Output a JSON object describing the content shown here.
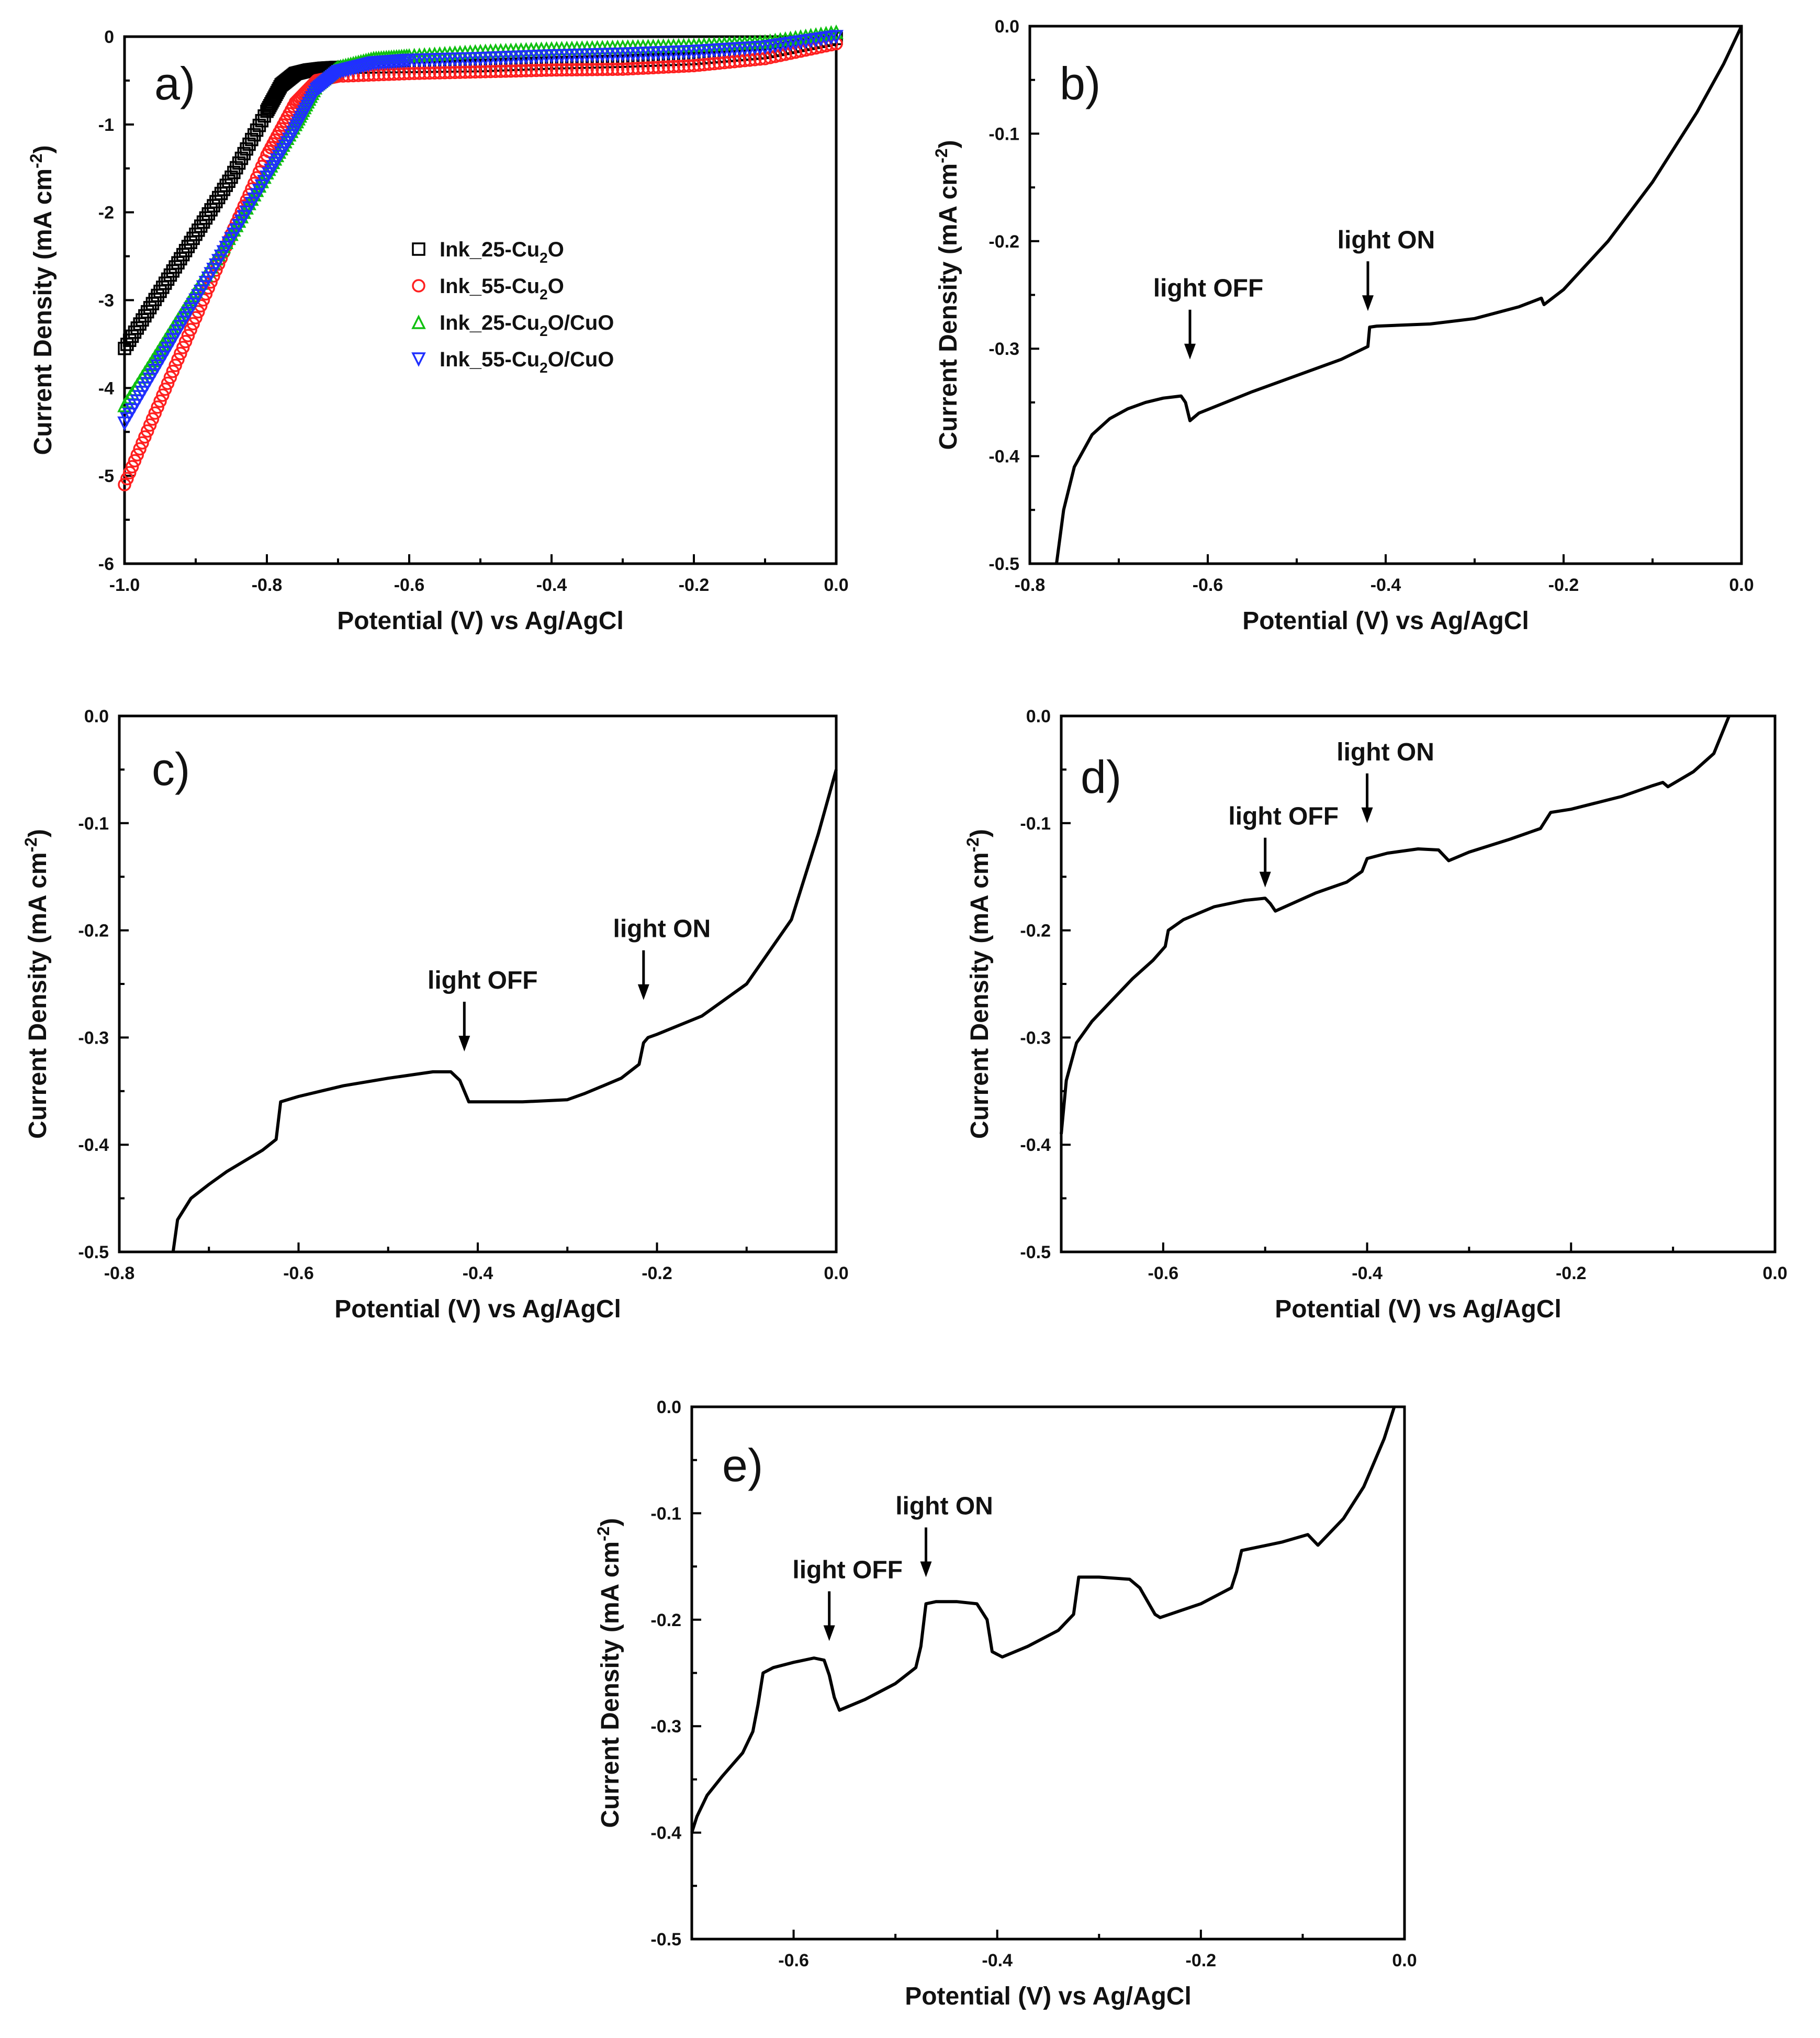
{
  "chart_data": [
    {
      "panel": "a)",
      "type": "scatter",
      "xlabel": "Potential (V) vs Ag/AgCl",
      "ylabel_main": "Current Density (mA cm",
      "ylabel_sup": "-2",
      "ylabel_tail": ")",
      "xlim": [
        -1.0,
        0.0
      ],
      "ylim": [
        -6,
        0
      ],
      "xticks": [
        -1.0,
        -0.8,
        -0.6,
        -0.4,
        -0.2,
        0.0
      ],
      "yticks": [
        0,
        -1,
        -2,
        -3,
        -4,
        -5,
        -6
      ],
      "xtick_labels": [
        "-1.0",
        "-0.8",
        "-0.6",
        "-0.4",
        "-0.2",
        "0.0"
      ],
      "ytick_labels": [
        "0",
        "-1",
        "-2",
        "-3",
        "-4",
        "-5",
        "-6"
      ],
      "series": [
        {
          "name_main": "Ink_25-Cu",
          "name_sub": "2",
          "name_tail": "O",
          "marker": "square",
          "color": "#000000",
          "x": [
            -1.0,
            -0.95,
            -0.9,
            -0.85,
            -0.8,
            -0.78,
            -0.76,
            -0.74,
            -0.72,
            -0.7,
            -0.6,
            -0.5,
            -0.4,
            -0.3,
            -0.2,
            -0.1,
            0.0
          ],
          "y": [
            -3.55,
            -2.9,
            -2.25,
            -1.6,
            -0.85,
            -0.55,
            -0.42,
            -0.38,
            -0.36,
            -0.35,
            -0.34,
            -0.33,
            -0.3,
            -0.28,
            -0.25,
            -0.18,
            -0.02
          ]
        },
        {
          "name_main": "Ink_55-Cu",
          "name_sub": "2",
          "name_tail": "O",
          "marker": "circle",
          "color": "#ff2020",
          "x": [
            -1.0,
            -0.95,
            -0.9,
            -0.85,
            -0.8,
            -0.76,
            -0.73,
            -0.7,
            -0.6,
            -0.5,
            -0.4,
            -0.3,
            -0.2,
            -0.1,
            0.0
          ],
          "y": [
            -5.1,
            -4.15,
            -3.2,
            -2.25,
            -1.35,
            -0.75,
            -0.5,
            -0.45,
            -0.42,
            -0.4,
            -0.38,
            -0.37,
            -0.33,
            -0.25,
            -0.08
          ]
        },
        {
          "name_main": "Ink_25-Cu",
          "name_sub": "2",
          "name_tail": "O/CuO",
          "marker": "triangle-up",
          "color": "#10c010",
          "x": [
            -1.0,
            -0.95,
            -0.9,
            -0.85,
            -0.8,
            -0.76,
            -0.73,
            -0.7,
            -0.65,
            -0.6,
            -0.5,
            -0.4,
            -0.3,
            -0.2,
            -0.1,
            0.0
          ],
          "y": [
            -4.2,
            -3.55,
            -2.9,
            -2.25,
            -1.55,
            -1.0,
            -0.55,
            -0.35,
            -0.25,
            -0.22,
            -0.17,
            -0.14,
            -0.12,
            -0.1,
            -0.06,
            0.05
          ]
        },
        {
          "name_main": "Ink_55-Cu",
          "name_sub": "2",
          "name_tail": "O/CuO",
          "marker": "triangle-down",
          "color": "#2030ff",
          "x": [
            -1.0,
            -0.95,
            -0.9,
            -0.85,
            -0.8,
            -0.76,
            -0.73,
            -0.7,
            -0.65,
            -0.6,
            -0.5,
            -0.4,
            -0.3,
            -0.2,
            -0.1,
            0.0
          ],
          "y": [
            -4.4,
            -3.7,
            -3.0,
            -2.3,
            -1.6,
            -1.05,
            -0.6,
            -0.4,
            -0.3,
            -0.27,
            -0.25,
            -0.22,
            -0.2,
            -0.17,
            -0.12,
            0.0
          ]
        }
      ]
    },
    {
      "panel": "b)",
      "type": "line",
      "xlabel": "Potential (V) vs Ag/AgCl",
      "ylabel_main": "Current Density (mA cm",
      "ylabel_sup": "-2",
      "ylabel_tail": ")",
      "xlim": [
        -0.8,
        0.0
      ],
      "ylim": [
        -0.5,
        0.0
      ],
      "xticks": [
        -0.8,
        -0.6,
        -0.4,
        -0.2,
        0.0
      ],
      "yticks": [
        0.0,
        -0.1,
        -0.2,
        -0.3,
        -0.4,
        -0.5
      ],
      "xtick_labels": [
        "-0.8",
        "-0.6",
        "-0.4",
        "-0.2",
        "0.0"
      ],
      "ytick_labels": [
        "0.0",
        "-0.1",
        "-0.2",
        "-0.3",
        "-0.4",
        "-0.5"
      ],
      "annotations": [
        {
          "text": "light OFF",
          "x": -0.62,
          "y": -0.31
        },
        {
          "text": "light ON",
          "x": -0.42,
          "y": -0.265
        }
      ],
      "x": [
        -0.77,
        -0.762,
        -0.75,
        -0.73,
        -0.71,
        -0.69,
        -0.67,
        -0.65,
        -0.63,
        -0.625,
        -0.62,
        -0.61,
        -0.55,
        -0.5,
        -0.45,
        -0.42,
        -0.418,
        -0.41,
        -0.35,
        -0.3,
        -0.25,
        -0.225,
        -0.222,
        -0.2,
        -0.15,
        -0.1,
        -0.05,
        -0.02,
        0.0
      ],
      "y": [
        -0.5,
        -0.45,
        -0.41,
        -0.38,
        -0.365,
        -0.356,
        -0.35,
        -0.346,
        -0.344,
        -0.35,
        -0.367,
        -0.36,
        -0.34,
        -0.325,
        -0.31,
        -0.298,
        -0.28,
        -0.279,
        -0.277,
        -0.272,
        -0.261,
        -0.253,
        -0.259,
        -0.245,
        -0.2,
        -0.145,
        -0.08,
        -0.035,
        0.0
      ]
    },
    {
      "panel": "c)",
      "type": "line",
      "xlabel": "Potential (V) vs Ag/AgCl",
      "ylabel_main": "Current Density (mA cm",
      "ylabel_sup": "-2",
      "ylabel_tail": ")",
      "xlim": [
        -0.8,
        0.0
      ],
      "ylim": [
        -0.5,
        0.0
      ],
      "xticks": [
        -0.8,
        -0.6,
        -0.4,
        -0.2,
        0.0
      ],
      "yticks": [
        0.0,
        -0.1,
        -0.2,
        -0.3,
        -0.4,
        -0.5
      ],
      "xtick_labels": [
        "-0.8",
        "-0.6",
        "-0.4",
        "-0.2",
        "0.0"
      ],
      "ytick_labels": [
        "0.0",
        "-0.1",
        "-0.2",
        "-0.3",
        "-0.4",
        "-0.5"
      ],
      "annotations": [
        {
          "text": "light OFF",
          "x": -0.415,
          "y": -0.313
        },
        {
          "text": "light ON",
          "x": -0.215,
          "y": -0.265
        }
      ],
      "x": [
        -0.74,
        -0.735,
        -0.72,
        -0.7,
        -0.68,
        -0.66,
        -0.64,
        -0.625,
        -0.62,
        -0.6,
        -0.55,
        -0.5,
        -0.45,
        -0.43,
        -0.42,
        -0.41,
        -0.35,
        -0.3,
        -0.28,
        -0.26,
        -0.24,
        -0.22,
        -0.215,
        -0.21,
        -0.2,
        -0.15,
        -0.1,
        -0.05,
        -0.02,
        0.0
      ],
      "y": [
        -0.5,
        -0.47,
        -0.45,
        -0.437,
        -0.425,
        -0.415,
        -0.405,
        -0.395,
        -0.36,
        -0.355,
        -0.345,
        -0.338,
        -0.332,
        -0.332,
        -0.34,
        -0.36,
        -0.36,
        -0.358,
        -0.352,
        -0.345,
        -0.338,
        -0.325,
        -0.305,
        -0.3,
        -0.297,
        -0.28,
        -0.25,
        -0.19,
        -0.11,
        -0.05
      ]
    },
    {
      "panel": "d)",
      "type": "line",
      "xlabel": "Potential (V) vs Ag/AgCl",
      "ylabel_main": "Current Density (mA cm",
      "ylabel_sup": "-2",
      "ylabel_tail": ")",
      "xlim": [
        -0.7,
        0.0
      ],
      "ylim": [
        -0.5,
        0.0
      ],
      "xticks": [
        -0.6,
        -0.4,
        -0.2,
        0.0
      ],
      "yticks": [
        0.0,
        -0.1,
        -0.2,
        -0.3,
        -0.4,
        -0.5
      ],
      "xtick_labels": [
        "-0.6",
        "-0.4",
        "-0.2",
        "0.0"
      ],
      "ytick_labels": [
        "0.0",
        "-0.1",
        "-0.2",
        "-0.3",
        "-0.4",
        "-0.5"
      ],
      "annotations": [
        {
          "text": "light OFF",
          "x": -0.5,
          "y": -0.16
        },
        {
          "text": "light ON",
          "x": -0.4,
          "y": -0.1
        }
      ],
      "x": [
        -0.7,
        -0.695,
        -0.685,
        -0.67,
        -0.65,
        -0.63,
        -0.61,
        -0.598,
        -0.595,
        -0.58,
        -0.55,
        -0.52,
        -0.5,
        -0.495,
        -0.49,
        -0.45,
        -0.42,
        -0.405,
        -0.4,
        -0.38,
        -0.35,
        -0.33,
        -0.325,
        -0.32,
        -0.3,
        -0.26,
        -0.23,
        -0.22,
        -0.2,
        -0.15,
        -0.12,
        -0.11,
        -0.105,
        -0.08,
        -0.06,
        -0.045
      ],
      "y": [
        -0.39,
        -0.34,
        -0.305,
        -0.285,
        -0.265,
        -0.245,
        -0.228,
        -0.215,
        -0.2,
        -0.19,
        -0.178,
        -0.172,
        -0.17,
        -0.175,
        -0.182,
        -0.165,
        -0.155,
        -0.145,
        -0.133,
        -0.128,
        -0.124,
        -0.125,
        -0.13,
        -0.135,
        -0.127,
        -0.115,
        -0.105,
        -0.09,
        -0.087,
        -0.075,
        -0.065,
        -0.062,
        -0.066,
        -0.052,
        -0.035,
        0.0
      ]
    },
    {
      "panel": "e)",
      "type": "line",
      "xlabel": "Potential (V) vs Ag/AgCl",
      "ylabel_main": "Current Density (mA cm",
      "ylabel_sup": "-2",
      "ylabel_tail": ")",
      "xlim": [
        -0.7,
        0.0
      ],
      "ylim": [
        -0.5,
        0.0
      ],
      "xticks": [
        -0.6,
        -0.4,
        -0.2,
        0.0
      ],
      "yticks": [
        0.0,
        -0.1,
        -0.2,
        -0.3,
        -0.4,
        -0.5
      ],
      "xtick_labels": [
        "-0.6",
        "-0.4",
        "-0.2",
        "0.0"
      ],
      "ytick_labels": [
        "0.0",
        "-0.1",
        "-0.2",
        "-0.3",
        "-0.4",
        "-0.5"
      ],
      "annotations": [
        {
          "text": "light OFF",
          "x": -0.565,
          "y": -0.22
        },
        {
          "text": "light ON",
          "x": -0.47,
          "y": -0.16
        }
      ],
      "x": [
        -0.7,
        -0.695,
        -0.685,
        -0.67,
        -0.65,
        -0.64,
        -0.635,
        -0.63,
        -0.62,
        -0.6,
        -0.58,
        -0.57,
        -0.565,
        -0.56,
        -0.555,
        -0.53,
        -0.5,
        -0.48,
        -0.475,
        -0.47,
        -0.46,
        -0.44,
        -0.42,
        -0.41,
        -0.405,
        -0.395,
        -0.37,
        -0.34,
        -0.325,
        -0.32,
        -0.3,
        -0.27,
        -0.26,
        -0.245,
        -0.24,
        -0.2,
        -0.17,
        -0.165,
        -0.16,
        -0.12,
        -0.095,
        -0.09,
        -0.085,
        -0.06,
        -0.04,
        -0.02,
        -0.01
      ],
      "y": [
        -0.4,
        -0.385,
        -0.365,
        -0.347,
        -0.325,
        -0.305,
        -0.28,
        -0.25,
        -0.245,
        -0.24,
        -0.236,
        -0.238,
        -0.252,
        -0.273,
        -0.285,
        -0.275,
        -0.26,
        -0.245,
        -0.225,
        -0.185,
        -0.183,
        -0.183,
        -0.185,
        -0.2,
        -0.23,
        -0.235,
        -0.225,
        -0.21,
        -0.195,
        -0.16,
        -0.16,
        -0.162,
        -0.17,
        -0.195,
        -0.198,
        -0.185,
        -0.17,
        -0.155,
        -0.135,
        -0.127,
        -0.12,
        -0.125,
        -0.13,
        -0.105,
        -0.075,
        -0.03,
        0.0
      ]
    }
  ]
}
